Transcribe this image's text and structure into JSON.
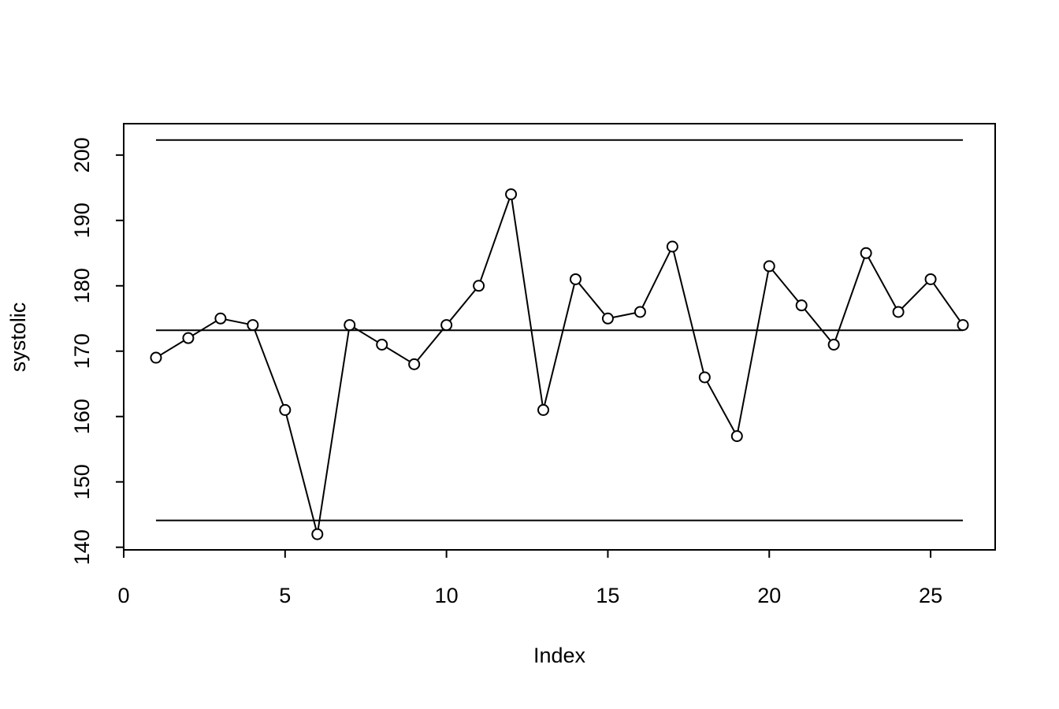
{
  "chart_data": {
    "type": "line",
    "x": [
      1,
      2,
      3,
      4,
      5,
      6,
      7,
      8,
      9,
      10,
      11,
      12,
      13,
      14,
      15,
      16,
      17,
      18,
      19,
      20,
      21,
      22,
      23,
      24,
      25,
      26
    ],
    "values": [
      169,
      172,
      175,
      174,
      161,
      142,
      174,
      171,
      168,
      174,
      180,
      194,
      161,
      181,
      175,
      176,
      186,
      166,
      157,
      183,
      177,
      171,
      185,
      176,
      181,
      174
    ],
    "color": "#000000",
    "marker": "open-circle",
    "hlines": [
      202.3,
      173.2,
      144.1
    ],
    "xlabel": "Index",
    "ylabel": "systolic",
    "xlim": [
      0,
      27
    ],
    "ylim": [
      139.6,
      204.8
    ],
    "xticks": [
      0,
      5,
      10,
      15,
      20,
      25
    ],
    "yticks": [
      140,
      150,
      160,
      170,
      180,
      190,
      200
    ]
  }
}
